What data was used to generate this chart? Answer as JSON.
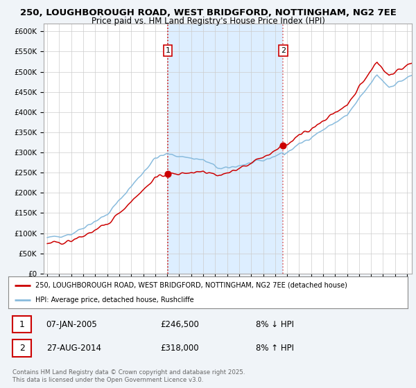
{
  "title1": "250, LOUGHBOROUGH ROAD, WEST BRIDGFORD, NOTTINGHAM, NG2 7EE",
  "title2": "Price paid vs. HM Land Registry's House Price Index (HPI)",
  "legend_line1": "250, LOUGHBOROUGH ROAD, WEST BRIDGFORD, NOTTINGHAM, NG2 7EE (detached house)",
  "legend_line2": "HPI: Average price, detached house, Rushcliffe",
  "sale1_date": "07-JAN-2005",
  "sale1_price": "£246,500",
  "sale1_hpi": "8% ↓ HPI",
  "sale2_date": "27-AUG-2014",
  "sale2_price": "£318,000",
  "sale2_hpi": "8% ↑ HPI",
  "footer": "Contains HM Land Registry data © Crown copyright and database right 2025.\nThis data is licensed under the Open Government Licence v3.0.",
  "red_line_color": "#cc0000",
  "blue_line_color": "#88bbdd",
  "sale1_x": 2005.04,
  "sale1_y": 246500,
  "sale2_x": 2014.67,
  "sale2_y": 318000,
  "bg_color": "#f0f4f8",
  "plot_bg_color": "#ffffff",
  "shade_color": "#ddeeff",
  "ylim": [
    0,
    620000
  ],
  "xlim_start": 1994.7,
  "xlim_end": 2025.4
}
